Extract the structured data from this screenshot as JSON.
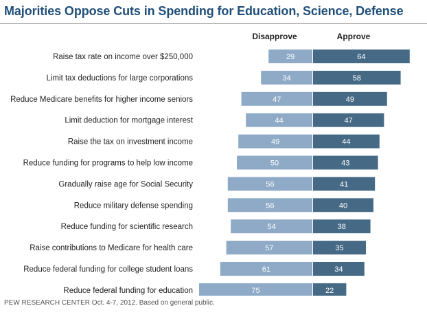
{
  "title": "Majorities Oppose Cuts in Spending for Education, Science, Defense",
  "footer": "PEW RESEARCH CENTER Oct. 4-7, 2012. Based on general public.",
  "colors": {
    "disapprove": "#8eaac7",
    "approve": "#466a86",
    "title": "#1f4e79"
  },
  "chart_data": {
    "type": "bar",
    "orientation": "horizontal-diverging",
    "categories": [
      "Raise tax rate on income over $250,000",
      "Limit tax deductions for large corporations",
      "Reduce Medicare benefits for higher income seniors",
      "Limit deduction for mortgage interest",
      "Raise the tax on investment income",
      "Reduce funding for programs to help low income",
      "Gradually raise age for Social Security",
      "Reduce military defense spending",
      "Reduce funding for scientific research",
      "Raise contributions to Medicare for health care",
      "Reduce federal funding for college student loans",
      "Reduce federal funding for education"
    ],
    "series": [
      {
        "name": "Disapprove",
        "values": [
          29,
          34,
          47,
          44,
          49,
          50,
          56,
          56,
          54,
          57,
          61,
          75
        ]
      },
      {
        "name": "Approve",
        "values": [
          64,
          58,
          49,
          47,
          44,
          43,
          41,
          40,
          38,
          35,
          34,
          22
        ]
      }
    ]
  }
}
